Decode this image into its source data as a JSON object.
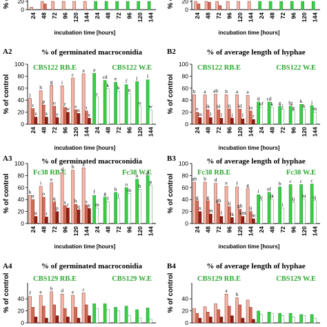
{
  "colors": {
    "rb_light": "#f4b5a7",
    "rb_mid": "#d36a55",
    "rb_dark": "#8a1f13",
    "we_bright": "#36cf45",
    "we_pale": "#c9f2c3",
    "we_white": "#ffffff",
    "legend_text": "#2fa833"
  },
  "chart_data": [
    {
      "id": "A1",
      "type": "bar",
      "panel_label": "",
      "title": "",
      "legend": {
        "rb": "",
        "we": ""
      },
      "ylabel": "% of control",
      "xlabel": "incubation time [hours]",
      "yticks": [
        0,
        20
      ],
      "ylim": [
        0,
        100
      ],
      "categories": [
        "24",
        "48",
        "72",
        "96",
        "120",
        "144",
        "24",
        "48",
        "72",
        "96",
        "120",
        "144"
      ],
      "series": [
        {
          "values": [
            6,
            20,
            20,
            20,
            20,
            20,
            20,
            20,
            20,
            20,
            20,
            20
          ],
          "labels": [
            "",
            "p",
            "",
            "",
            "",
            "",
            "",
            "",
            "",
            "",
            "",
            ""
          ]
        },
        {
          "values": [
            0,
            14,
            0,
            0,
            0,
            0,
            0,
            0,
            0,
            0,
            0,
            0
          ],
          "labels": [
            "",
            "",
            "",
            "",
            "",
            "",
            "",
            "",
            "",
            "",
            "",
            ""
          ]
        }
      ]
    },
    {
      "id": "B1",
      "type": "bar",
      "panel_label": "",
      "title": "",
      "legend": {
        "rb": "",
        "we": ""
      },
      "ylabel": "% of control",
      "xlabel": "incubation time [hours]",
      "yticks": [
        0,
        20
      ],
      "ylim": [
        0,
        100
      ],
      "categories": [
        "24",
        "48",
        "72",
        "96",
        "120",
        "144",
        "24",
        "48",
        "72",
        "96",
        "120",
        "144"
      ],
      "series": [
        {
          "values": [
            20,
            20,
            20,
            20,
            20,
            20,
            20,
            20,
            20,
            20,
            20,
            20
          ],
          "labels": [
            "",
            "",
            "",
            "",
            "",
            "",
            "",
            "",
            "",
            "",
            "",
            ""
          ]
        },
        {
          "values": [
            14,
            18,
            10,
            0,
            0,
            0,
            0,
            0,
            0,
            0,
            0,
            0
          ],
          "labels": [
            "",
            "",
            "",
            "",
            "",
            "",
            "",
            "",
            "",
            "",
            "",
            ""
          ]
        }
      ]
    },
    {
      "id": "A2",
      "type": "bar",
      "panel_label": "A2",
      "title": "% of germinated macroconidia",
      "legend": {
        "rb": "CBS122 RB.E",
        "we": "CBS122 W.E"
      },
      "ylabel": "% of control",
      "xlabel": "incubation time [hours]",
      "yticks": [
        0,
        20,
        40,
        60,
        80,
        100
      ],
      "ylim": [
        0,
        100
      ],
      "categories": [
        "24",
        "48",
        "72",
        "96",
        "120",
        "144",
        "24",
        "48",
        "72",
        "96",
        "120",
        "144"
      ],
      "series": [
        {
          "values": [
            43,
            56,
            65,
            64,
            77,
            84,
            85,
            73,
            70,
            66,
            71,
            74
          ],
          "labels": [
            "j",
            "h",
            "g",
            "i",
            "c",
            "a",
            "a",
            "cd",
            "e",
            "f",
            "j",
            "l"
          ]
        },
        {
          "values": [
            26,
            32,
            30,
            28,
            24,
            22,
            45,
            59,
            55,
            51,
            30,
            24
          ],
          "labels": [
            "r",
            "p",
            "o",
            "r",
            "s",
            "t",
            "c",
            "k",
            "k",
            "n",
            "o",
            "w"
          ]
        },
        {
          "values": [
            12,
            12,
            11,
            20,
            18,
            10,
            0,
            0,
            0,
            0,
            0,
            0
          ],
          "labels": [
            "z",
            "x",
            "y",
            "w",
            "u",
            "v",
            "",
            "",
            "",
            "",
            "",
            ""
          ]
        }
      ]
    },
    {
      "id": "B2",
      "type": "bar",
      "panel_label": "B2",
      "title": "% of average length of hyphae",
      "legend": {
        "rb": "CBS122 RB.E",
        "we": "CBS122 W.E"
      },
      "ylabel": "% of control",
      "xlabel": "incubation time [hours]",
      "yticks": [
        0,
        20,
        40,
        60,
        80,
        100
      ],
      "ylim": [
        0,
        100
      ],
      "categories": [
        "24",
        "48",
        "72",
        "96",
        "120",
        "144",
        "24",
        "48",
        "72",
        "96",
        "120",
        "144"
      ],
      "series": [
        {
          "values": [
            49,
            49,
            50,
            49,
            49,
            48,
            37,
            37,
            30,
            30,
            33,
            31
          ],
          "labels": [
            "b",
            "a",
            "ab",
            "b",
            "a",
            "a",
            "d",
            "cd",
            "g",
            "fg",
            "k",
            "j"
          ]
        },
        {
          "values": [
            20,
            24,
            24,
            25,
            25,
            22,
            28,
            28,
            25,
            22,
            25,
            20
          ],
          "labels": [
            "e",
            "ik",
            "kl",
            "ij",
            "kl",
            "lo",
            "ef",
            "k",
            "j",
            "g",
            "k",
            "m"
          ]
        },
        {
          "values": [
            11,
            11,
            10,
            10,
            9,
            8,
            0,
            0,
            0,
            0,
            0,
            0
          ],
          "labels": [
            "m",
            "l",
            "l",
            "j",
            "l",
            "r",
            "",
            "",
            "",
            "",
            "",
            ""
          ]
        }
      ]
    },
    {
      "id": "A3",
      "type": "bar",
      "panel_label": "A3",
      "title": "% of germinated macroconidia",
      "legend": {
        "rb": "Fc38 RB.E",
        "we": "Fc38 W.E"
      },
      "ylabel": "% of control",
      "xlabel": "incubation time [hours]",
      "yticks": [
        0,
        20,
        40,
        60,
        80,
        100
      ],
      "ylim": [
        0,
        100
      ],
      "categories": [
        "24",
        "48",
        "72",
        "96",
        "120",
        "144",
        "24",
        "48",
        "72",
        "96",
        "120",
        "144"
      ],
      "series": [
        {
          "values": [
            47,
            62,
            68,
            85,
            89,
            93,
            47,
            44,
            52,
            60,
            74,
            80
          ],
          "labels": [
            "k",
            "i",
            "e",
            "d",
            "b",
            "a",
            "f",
            "g",
            "h",
            "o",
            "n",
            "p"
          ]
        },
        {
          "values": [
            40,
            44,
            36,
            30,
            32,
            31,
            26,
            36,
            42,
            50,
            57,
            64
          ],
          "labels": [
            "n",
            "o",
            "q",
            "s",
            "h",
            "s",
            "m",
            "l",
            "j",
            "m",
            "h",
            "p"
          ]
        },
        {
          "values": [
            12,
            11,
            20,
            26,
            23,
            25,
            0,
            0,
            0,
            0,
            0,
            0
          ],
          "labels": [
            "u",
            "t",
            "p",
            "r",
            "q",
            "y",
            "",
            "",
            "",
            "",
            "",
            ""
          ]
        }
      ]
    },
    {
      "id": "B3",
      "type": "bar",
      "panel_label": "B3",
      "title": "% of average length of hyphae",
      "legend": {
        "rb": "Fc38 RB.E",
        "we": "Fc38 W.E"
      },
      "ylabel": "% of control",
      "xlabel": "incubation time [hours]",
      "yticks": [
        0,
        20,
        40,
        60,
        80,
        100
      ],
      "ylim": [
        0,
        100
      ],
      "categories": [
        "24",
        "48",
        "72",
        "96",
        "120",
        "144",
        "24",
        "48",
        "72",
        "96",
        "120",
        "144"
      ],
      "series": [
        {
          "values": [
            69,
            69,
            67,
            62,
            61,
            58,
            48,
            52,
            61,
            65,
            65,
            66
          ],
          "labels": [
            "ab",
            "b",
            "d",
            "e",
            "f",
            "g",
            "i",
            "ef",
            "b",
            "c",
            "c",
            "c"
          ]
        },
        {
          "values": [
            38,
            38,
            33,
            28,
            24,
            20,
            38,
            40,
            26,
            35,
            40,
            38
          ],
          "labels": [
            "g",
            "g",
            "gh",
            "ij",
            "gh",
            "ij",
            "ij",
            "jk",
            "i",
            "ij",
            "hi",
            "ij"
          ]
        },
        {
          "values": [
            20,
            16,
            12,
            10,
            12,
            8,
            0,
            0,
            0,
            0,
            0,
            0
          ],
          "labels": [
            "n",
            "m",
            "l",
            "lk",
            "km",
            "m",
            "",
            "",
            "",
            "",
            "",
            ""
          ]
        }
      ]
    },
    {
      "id": "A4",
      "type": "bar",
      "panel_label": "A4",
      "title": "% of germinated macroconidia",
      "legend": {
        "rb": "CBS129 RB.E",
        "we": "CBS129 W.E"
      },
      "ylabel": "% of control",
      "xlabel": "incubation time [hours]",
      "yticks": [
        0,
        20,
        40
      ],
      "ylim": [
        0,
        100
      ],
      "categories": [
        "24",
        "48",
        "72",
        "96",
        "120",
        "144",
        "24",
        "48",
        "72",
        "96",
        "120",
        "144"
      ],
      "series": [
        {
          "values": [
            44,
            46,
            52,
            48,
            46,
            50,
            32,
            32,
            26,
            28,
            22,
            25
          ],
          "labels": [
            "f",
            "e",
            "b",
            "d",
            "e",
            "c",
            "",
            "",
            "",
            "",
            "",
            ""
          ]
        },
        {
          "values": [
            26,
            28,
            30,
            24,
            26,
            30,
            24,
            22,
            20,
            12,
            8,
            6
          ],
          "labels": [
            "",
            "",
            "",
            "",
            "",
            "",
            "",
            "",
            "",
            "",
            "",
            ""
          ]
        },
        {
          "values": [
            10,
            8,
            12,
            10,
            8,
            12,
            0,
            0,
            0,
            0,
            0,
            0
          ],
          "labels": [
            "",
            "",
            "",
            "",
            "",
            "",
            "",
            "",
            "",
            "",
            "",
            ""
          ]
        }
      ]
    },
    {
      "id": "B4",
      "type": "bar",
      "panel_label": "B4",
      "title": "% of average length of hyphae",
      "legend": {
        "rb": "CBS129 RB.E",
        "we": "CBS129 W.E"
      },
      "ylabel": "% of control",
      "xlabel": "incubation time [hours]",
      "yticks": [
        0,
        20,
        40
      ],
      "ylim": [
        0,
        100
      ],
      "categories": [
        "24",
        "48",
        "72",
        "96",
        "120",
        "144",
        "24",
        "48",
        "72",
        "96",
        "120",
        "144"
      ],
      "series": [
        {
          "values": [
            24,
            27,
            32,
            48,
            42,
            38,
            20,
            18,
            16,
            16,
            14,
            14
          ],
          "labels": [
            "",
            "",
            "",
            "a",
            "b",
            "",
            "",
            "",
            "",
            "",
            "",
            ""
          ]
        },
        {
          "values": [
            16,
            18,
            22,
            28,
            30,
            26,
            14,
            16,
            12,
            10,
            12,
            8
          ],
          "labels": [
            "",
            "",
            "",
            "",
            "",
            "",
            "",
            "",
            "",
            "",
            "",
            ""
          ]
        },
        {
          "values": [
            8,
            10,
            10,
            12,
            8,
            6,
            0,
            0,
            0,
            0,
            0,
            0
          ],
          "labels": [
            "",
            "",
            "",
            "",
            "",
            "",
            "",
            "",
            "",
            "",
            "",
            ""
          ]
        }
      ]
    }
  ]
}
